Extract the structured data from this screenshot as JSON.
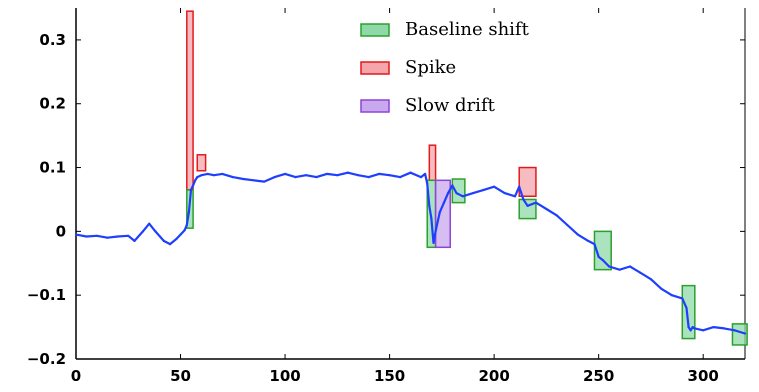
{
  "chart_data": {
    "type": "line",
    "title": "",
    "xlabel": "",
    "ylabel": "",
    "xlim": [
      0,
      320
    ],
    "ylim": [
      -0.2,
      0.35
    ],
    "xticks": [
      0,
      50,
      100,
      150,
      200,
      250,
      300
    ],
    "xtick_labels": [
      "0",
      "50",
      "100",
      "150",
      "200",
      "250",
      "300"
    ],
    "yticks": [
      -0.2,
      -0.1,
      0,
      0.1,
      0.2,
      0.3
    ],
    "ytick_labels": [
      "−0.2",
      "−0.1",
      "0",
      "0.1",
      "0.2",
      "0.3"
    ],
    "grid": false,
    "legend_position": "top-right",
    "line_color": "#1f3fff",
    "series": [
      {
        "x": [
          0,
          5,
          10,
          15,
          20,
          25,
          28,
          32,
          35,
          38,
          42,
          45,
          48,
          50,
          52,
          53,
          54,
          55,
          56,
          57,
          58,
          60,
          63,
          66,
          70,
          75,
          80,
          85,
          90,
          95,
          100,
          105,
          110,
          115,
          120,
          125,
          130,
          135,
          140,
          145,
          150,
          155,
          160,
          165,
          167,
          168,
          169,
          170,
          171,
          172,
          174,
          176,
          178,
          180,
          182,
          185,
          190,
          195,
          200,
          205,
          210,
          212,
          214,
          216,
          220,
          225,
          230,
          235,
          240,
          245,
          248,
          250,
          252,
          255,
          260,
          265,
          270,
          275,
          280,
          285,
          290,
          292,
          293,
          294,
          295,
          296,
          300,
          305,
          310,
          315,
          320
        ],
        "y": [
          -0.005,
          -0.008,
          -0.007,
          -0.01,
          -0.008,
          -0.007,
          -0.015,
          0.0,
          0.012,
          0.0,
          -0.015,
          -0.02,
          -0.012,
          -0.005,
          0.002,
          0.01,
          0.03,
          0.065,
          0.072,
          0.08,
          0.085,
          0.088,
          0.09,
          0.088,
          0.09,
          0.085,
          0.082,
          0.08,
          0.078,
          0.085,
          0.09,
          0.085,
          0.088,
          0.085,
          0.09,
          0.088,
          0.092,
          0.088,
          0.085,
          0.09,
          0.088,
          0.085,
          0.092,
          0.085,
          0.09,
          0.075,
          0.04,
          0.02,
          -0.018,
          0.0,
          0.03,
          0.045,
          0.06,
          0.072,
          0.06,
          0.055,
          0.06,
          0.065,
          0.07,
          0.06,
          0.055,
          0.07,
          0.05,
          0.04,
          0.045,
          0.035,
          0.025,
          0.01,
          -0.005,
          -0.015,
          -0.02,
          -0.04,
          -0.045,
          -0.055,
          -0.06,
          -0.055,
          -0.065,
          -0.075,
          -0.09,
          -0.1,
          -0.105,
          -0.12,
          -0.15,
          -0.155,
          -0.15,
          -0.152,
          -0.155,
          -0.15,
          -0.152,
          -0.155,
          -0.16
        ]
      }
    ],
    "legend": [
      {
        "label": "Baseline shift",
        "color": "#2ca02c",
        "fill": "#8fd9a8"
      },
      {
        "label": "Spike",
        "color": "#e31a1c",
        "fill": "#f4a6ac"
      },
      {
        "label": "Slow drift",
        "color": "#8e44d6",
        "fill": "#c9a8ee"
      }
    ],
    "annotations": [
      {
        "type": "Spike",
        "x": [
          53,
          56
        ],
        "y": [
          0.065,
          0.345
        ]
      },
      {
        "type": "Spike",
        "x": [
          58,
          62
        ],
        "y": [
          0.095,
          0.12
        ]
      },
      {
        "type": "Baseline shift",
        "x": [
          53,
          56
        ],
        "y": [
          0.005,
          0.065
        ]
      },
      {
        "type": "Spike",
        "x": [
          169,
          172
        ],
        "y": [
          0.08,
          0.135
        ]
      },
      {
        "type": "Baseline shift",
        "x": [
          168,
          172
        ],
        "y": [
          -0.025,
          0.08
        ]
      },
      {
        "type": "Slow drift",
        "x": [
          172,
          179
        ],
        "y": [
          -0.025,
          0.08
        ]
      },
      {
        "type": "Baseline shift",
        "x": [
          180,
          186
        ],
        "y": [
          0.045,
          0.082
        ]
      },
      {
        "type": "Spike",
        "x": [
          212,
          220
        ],
        "y": [
          0.055,
          0.1
        ]
      },
      {
        "type": "Baseline shift",
        "x": [
          212,
          220
        ],
        "y": [
          0.02,
          0.05
        ]
      },
      {
        "type": "Baseline shift",
        "x": [
          248,
          256
        ],
        "y": [
          -0.06,
          0.0
        ]
      },
      {
        "type": "Baseline shift",
        "x": [
          290,
          296
        ],
        "y": [
          -0.168,
          -0.085
        ]
      },
      {
        "type": "Baseline shift",
        "x": [
          314,
          321
        ],
        "y": [
          -0.178,
          -0.145
        ]
      }
    ]
  }
}
